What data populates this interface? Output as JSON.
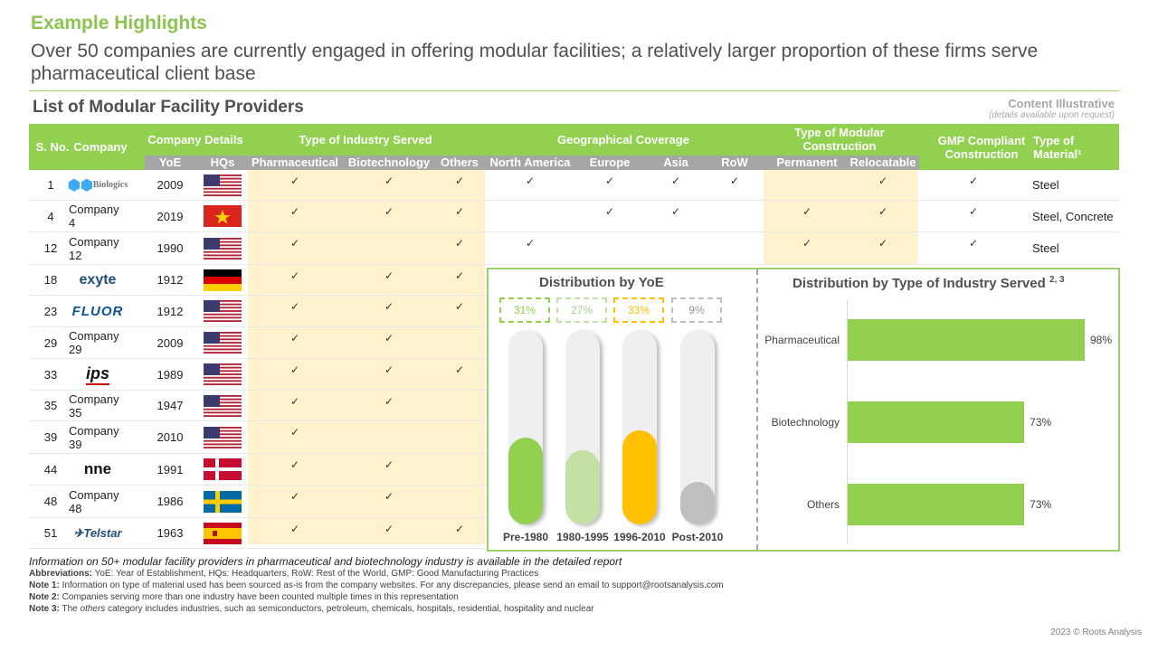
{
  "header": {
    "title": "Example Highlights",
    "subtitle": "Over 50 companies are currently engaged in offering modular facilities; a relatively larger proportion of these firms serve pharmaceutical client base"
  },
  "section_title": "List of Modular Facility Providers",
  "content_note": {
    "line1": "Content Illustrative",
    "line2": "(details available upon request)"
  },
  "table": {
    "groups": {
      "sno": "S. No.",
      "company": "Company",
      "company_details": "Company Details",
      "industry": "Type of Industry  Served",
      "geo": "Geographical Coverage",
      "construction": "Type of Modular Construction",
      "gmp": "GMP Compliant Construction",
      "material": "Type of Material¹"
    },
    "subheaders": [
      "YoE",
      "HQs",
      "Pharmaceutical",
      "Biotechnology",
      "Others",
      "North America",
      "Europe",
      "Asia",
      "RoW",
      "Permanent",
      "Relocatable"
    ],
    "check_glyph": "✓",
    "rows": [
      {
        "sno": "1",
        "company": "Biologics Modular",
        "logo": true,
        "yoe": "2009",
        "hq": "usa",
        "pharma": true,
        "bio": true,
        "others": true,
        "na": true,
        "eu": true,
        "asia": true,
        "row": true,
        "perm": false,
        "reloc": true,
        "gmp": true,
        "material": "Steel"
      },
      {
        "sno": "4",
        "company": "Company 4",
        "logo": false,
        "yoe": "2019",
        "hq": "vietnam",
        "pharma": true,
        "bio": true,
        "others": true,
        "na": false,
        "eu": true,
        "asia": true,
        "row": false,
        "perm": true,
        "reloc": true,
        "gmp": true,
        "material": "Steel, Concrete"
      },
      {
        "sno": "12",
        "company": "Company 12",
        "logo": false,
        "yoe": "1990",
        "hq": "usa",
        "pharma": true,
        "bio": false,
        "others": true,
        "na": true,
        "eu": false,
        "asia": false,
        "row": false,
        "perm": true,
        "reloc": true,
        "gmp": true,
        "material": "Steel"
      },
      {
        "sno": "18",
        "company": "exyte",
        "logo": true,
        "yoe": "1912",
        "hq": "germany",
        "pharma": true,
        "bio": true,
        "others": true
      },
      {
        "sno": "23",
        "company": "FLUOR",
        "logo": true,
        "yoe": "1912",
        "hq": "usa",
        "pharma": true,
        "bio": true,
        "others": true
      },
      {
        "sno": "29",
        "company": "Company 29",
        "logo": false,
        "yoe": "2009",
        "hq": "usa",
        "pharma": true,
        "bio": true,
        "others": false
      },
      {
        "sno": "33",
        "company": "ips",
        "logo": true,
        "yoe": "1989",
        "hq": "usa",
        "pharma": true,
        "bio": true,
        "others": true
      },
      {
        "sno": "35",
        "company": "Company 35",
        "logo": false,
        "yoe": "1947",
        "hq": "usa",
        "pharma": true,
        "bio": true,
        "others": false
      },
      {
        "sno": "39",
        "company": "Company 39",
        "logo": false,
        "yoe": "2010",
        "hq": "usa",
        "pharma": true,
        "bio": false,
        "others": false
      },
      {
        "sno": "44",
        "company": "nne",
        "logo": true,
        "yoe": "1991",
        "hq": "denmark",
        "pharma": true,
        "bio": true,
        "others": false
      },
      {
        "sno": "48",
        "company": "Company 48",
        "logo": false,
        "yoe": "1986",
        "hq": "sweden",
        "pharma": true,
        "bio": true,
        "others": false
      },
      {
        "sno": "51",
        "company": "Telstar",
        "logo": true,
        "yoe": "1963",
        "hq": "spain",
        "pharma": true,
        "bio": true,
        "others": true
      }
    ]
  },
  "colors": {
    "green": "#92d050",
    "light_green": "#c5e0a5",
    "yellow": "#ffc000",
    "grey": "#bfbfbf",
    "band": "#fff2cc"
  },
  "chart_data": [
    {
      "type": "bar",
      "title": "Distribution by YoE",
      "categories": [
        "Pre-1980",
        "1980-1995",
        "1996-2010",
        "Post-2010"
      ],
      "values": [
        31,
        27,
        33,
        9
      ],
      "labels": [
        "31%",
        "27%",
        "33%",
        "9%"
      ],
      "colors": [
        "#92d050",
        "#c5e0a5",
        "#ffc000",
        "#bfbfbf"
      ],
      "unit": "%",
      "ylim": [
        0,
        100
      ]
    },
    {
      "type": "bar",
      "orientation": "horizontal",
      "title": "Distribution by Type of Industry Served",
      "title_sup": "2, 3",
      "categories": [
        "Pharmaceutical",
        "Biotechnology",
        "Others"
      ],
      "values": [
        98,
        73,
        73
      ],
      "labels": [
        "98%",
        "73%",
        "73%"
      ],
      "unit": "%",
      "xlim": [
        0,
        100
      ],
      "color": "#92d050"
    }
  ],
  "footer": {
    "info": "Information on 50+ modular facility providers in pharmaceutical and biotechnology industry is available in the detailed report",
    "abbr_label": "Abbreviations:",
    "abbr": " YoE: Year of Establishment,  HQs: Headquarters, RoW:  Rest of the World, GMP:  Good Manufacturing Practices",
    "note1_label": "Note 1:",
    "note1": " Information on type of material used has been sourced as-is from the company websites. For any discrepancies, please send an email to support@rootsanalysis.com",
    "note2_label": "Note 2:",
    "note2": " Companies serving  more than one industry have been counted multiple  times in this representation",
    "note3_label": "Note 3:",
    "note3_pre": " The ",
    "note3_em": "others",
    "note3_post": " category includes industries, such as semiconductors, petroleum, chemicals, hospitals, residential, hospitality and nuclear",
    "copyright": "2023 © Roots Analysis"
  }
}
